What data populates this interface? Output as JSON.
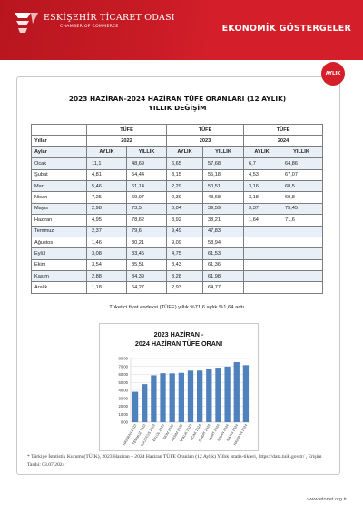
{
  "header": {
    "org_name": "ESKİŞEHİR TİCARET ODASI",
    "org_sub": "CHAMBER OF COMMERCE",
    "section": "EKONOMİK GÖSTERGELER",
    "brand_color": "#d41f2a"
  },
  "badge": {
    "label": "AYLIK"
  },
  "document": {
    "title_line1": "2023 HAZİRAN-2024 HAZİRAN TÜFE ORANLARI (12 AYLIK)",
    "title_line2": "YILLIK DEĞİŞİM"
  },
  "table": {
    "group_header": "TÜFE",
    "years_label": "Yıllar",
    "months_label": "Aylar",
    "years": [
      "2022",
      "2023",
      "2024"
    ],
    "sub_headers": [
      "AYLIK",
      "YILLIK"
    ],
    "rows": [
      {
        "month": "Ocak",
        "y2022_aylik": "11,1",
        "y2022_yillik": "48,69",
        "y2023_aylik": "6,65",
        "y2023_yillik": "57,68",
        "y2024_aylik": "6,7",
        "y2024_yillik": "64,86"
      },
      {
        "month": "Şubat",
        "y2022_aylik": "4,81",
        "y2022_yillik": "54,44",
        "y2023_aylik": "3,15",
        "y2023_yillik": "55,18",
        "y2024_aylik": "4,53",
        "y2024_yillik": "67,07"
      },
      {
        "month": "Mart",
        "y2022_aylik": "5,46",
        "y2022_yillik": "61,14",
        "y2023_aylik": "2,29",
        "y2023_yillik": "50,51",
        "y2024_aylik": "3,16",
        "y2024_yillik": "68,5"
      },
      {
        "month": "Nisan",
        "y2022_aylik": "7,25",
        "y2022_yillik": "69,97",
        "y2023_aylik": "2,39",
        "y2023_yillik": "43,68",
        "y2024_aylik": "3,18",
        "y2024_yillik": "69,8"
      },
      {
        "month": "Mayıs",
        "y2022_aylik": "2,98",
        "y2022_yillik": "73,5",
        "y2023_aylik": "0,04",
        "y2023_yillik": "39,59",
        "y2024_aylik": "3,37",
        "y2024_yillik": "75,45"
      },
      {
        "month": "Haziran",
        "y2022_aylik": "4,95",
        "y2022_yillik": "78,62",
        "y2023_aylik": "3,92",
        "y2023_yillik": "38,21",
        "y2024_aylik": "1,64",
        "y2024_yillik": "71,6"
      },
      {
        "month": "Temmuz",
        "y2022_aylik": "2,37",
        "y2022_yillik": "79,6",
        "y2023_aylik": "9,49",
        "y2023_yillik": "47,83",
        "y2024_aylik": "",
        "y2024_yillik": ""
      },
      {
        "month": "Ağustos",
        "y2022_aylik": "1,46",
        "y2022_yillik": "80,21",
        "y2023_aylik": "9,09",
        "y2023_yillik": "58,94",
        "y2024_aylik": "",
        "y2024_yillik": ""
      },
      {
        "month": "Eylül",
        "y2022_aylik": "3,08",
        "y2022_yillik": "83,45",
        "y2023_aylik": "4,75",
        "y2023_yillik": "61,53",
        "y2024_aylik": "",
        "y2024_yillik": ""
      },
      {
        "month": "Ekim",
        "y2022_aylik": "3,54",
        "y2022_yillik": "85,51",
        "y2023_aylik": "3,43",
        "y2023_yillik": "61,36",
        "y2024_aylik": "",
        "y2024_yillik": ""
      },
      {
        "month": "Kasım",
        "y2022_aylik": "2,88",
        "y2022_yillik": "84,39",
        "y2023_aylik": "3,28",
        "y2023_yillik": "61,98",
        "y2024_aylik": "",
        "y2024_yillik": ""
      },
      {
        "month": "Aralık",
        "y2022_aylik": "1,18",
        "y2022_yillik": "64,27",
        "y2023_aylik": "2,93",
        "y2023_yillik": "64,77",
        "y2024_aylik": "",
        "y2024_yillik": ""
      }
    ]
  },
  "note": "Tüketici fiyat endeksi (TÜFE) yıllık %71,6 aylık %1,64 arttı.",
  "chart_data": {
    "type": "bar",
    "title": "2023 HAZİRAN - 2024 HAZİRAN TÜFE ORANI",
    "categories": [
      "HAZİRAN 2023",
      "TEMMUZ 2023",
      "AĞUSTOS 2023",
      "EYLÜL 2023",
      "EKİM 2023",
      "KASIM 2023",
      "ARALIK 2023",
      "OCAK 2024",
      "ŞUBAT 2024",
      "MART 2024",
      "NİSAN 2024",
      "MAYIS 2024",
      "HAZİRAN 2024"
    ],
    "values": [
      38.21,
      47.83,
      58.94,
      61.53,
      61.36,
      61.98,
      64.77,
      64.86,
      67.07,
      68.5,
      69.8,
      75.45,
      71.6
    ],
    "ylim": [
      0,
      80
    ],
    "yticks": [
      "0,00",
      "10,00",
      "20,00",
      "30,00",
      "40,00",
      "50,00",
      "60,00",
      "70,00",
      "80,00"
    ],
    "grid": true,
    "bar_color": "#4f81bd"
  },
  "footnote": "* Türkiye İstatistik Kurumu(TÜİK), 2023 Haziran – 2024 Haziran TÜFE Oranları (12 Aylık) Yıllık istatis-tikleri, https://data.tuik.gov.tr/ , Erişim Tarihi: 03.07.2024",
  "website": "www.etonet.org.tr"
}
